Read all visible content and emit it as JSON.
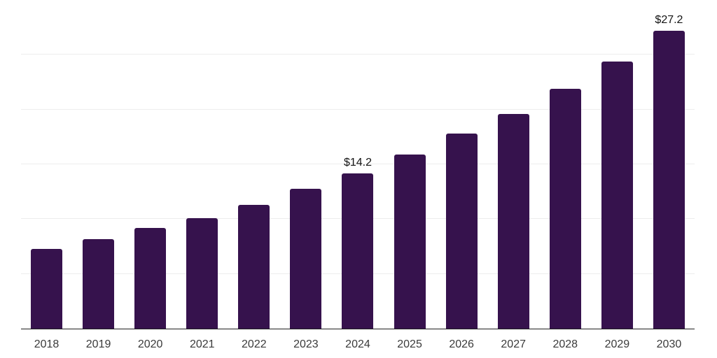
{
  "chart_data": {
    "type": "bar",
    "title": "",
    "categories": [
      "2018",
      "2019",
      "2020",
      "2021",
      "2022",
      "2023",
      "2024",
      "2025",
      "2026",
      "2027",
      "2028",
      "2029",
      "2030"
    ],
    "values": [
      7.3,
      8.2,
      9.2,
      10.1,
      11.3,
      12.8,
      14.2,
      15.9,
      17.8,
      19.6,
      21.9,
      24.4,
      27.2
    ],
    "data_labels": [
      "",
      "",
      "",
      "",
      "",
      "",
      "$14.2",
      "",
      "",
      "",
      "",
      "",
      "$27.2"
    ],
    "ylim": [
      0,
      30
    ],
    "gridline_step": 5,
    "grid": "horizontal",
    "legend": "none",
    "colors": {
      "bar": "#36124D",
      "gridline": "#ededed",
      "axis_line": "#1f1f1f",
      "tick_label": "#3a3a3a",
      "data_label": "#141414",
      "background": "#ffffff"
    }
  }
}
